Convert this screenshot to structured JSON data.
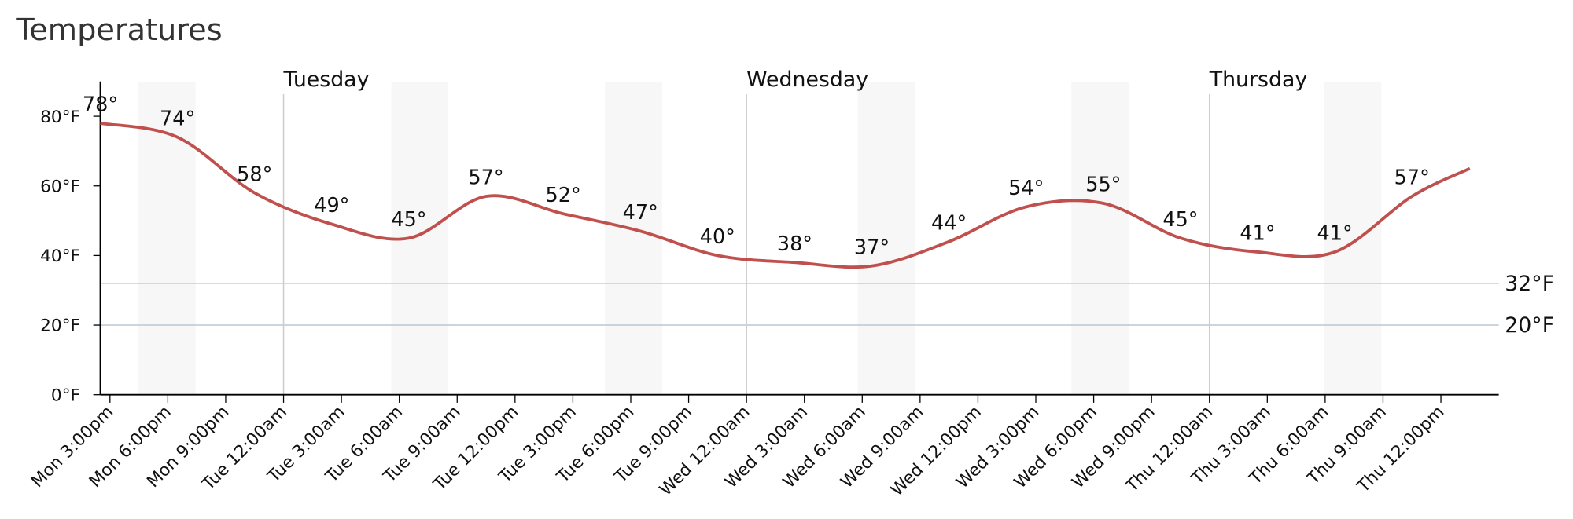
{
  "chart_data": {
    "type": "line",
    "title": "Temperatures",
    "x": [
      14.5,
      18.5,
      22.5,
      26.5,
      30.5,
      34.5,
      38.5,
      42.5,
      46.5,
      50.5,
      54.5,
      58.5,
      62.5,
      66.5,
      70.5,
      74.5,
      78.5,
      82.5,
      85.5
    ],
    "series": [
      {
        "name": "Temperature",
        "color": "#c0504d",
        "values": [
          78,
          74,
          58,
          49,
          45,
          57,
          52,
          47,
          40,
          38,
          37,
          44,
          54,
          55,
          45,
          41,
          41,
          57,
          65
        ],
        "value_labels": [
          "78°",
          "74°",
          "58°",
          "49°",
          "45°",
          "57°",
          "52°",
          "47°",
          "40°",
          "38°",
          "37°",
          "44°",
          "54°",
          "55°",
          "45°",
          "41°",
          "41°",
          "57°",
          null
        ]
      }
    ],
    "xlim": [
      14.5,
      87
    ],
    "xticks": [
      {
        "value": 15,
        "label": "Mon 3:00pm"
      },
      {
        "value": 18,
        "label": "Mon 6:00pm"
      },
      {
        "value": 21,
        "label": "Mon 9:00pm"
      },
      {
        "value": 24,
        "label": "Tue 12:00am"
      },
      {
        "value": 27,
        "label": "Tue 3:00am"
      },
      {
        "value": 30,
        "label": "Tue 6:00am"
      },
      {
        "value": 33,
        "label": "Tue 9:00am"
      },
      {
        "value": 36,
        "label": "Tue 12:00pm"
      },
      {
        "value": 39,
        "label": "Tue 3:00pm"
      },
      {
        "value": 42,
        "label": "Tue 6:00pm"
      },
      {
        "value": 45,
        "label": "Tue 9:00pm"
      },
      {
        "value": 48,
        "label": "Wed 12:00am"
      },
      {
        "value": 51,
        "label": "Wed 3:00am"
      },
      {
        "value": 54,
        "label": "Wed 6:00am"
      },
      {
        "value": 57,
        "label": "Wed 9:00am"
      },
      {
        "value": 60,
        "label": "Wed 12:00pm"
      },
      {
        "value": 63,
        "label": "Wed 3:00pm"
      },
      {
        "value": 66,
        "label": "Wed 6:00pm"
      },
      {
        "value": 69,
        "label": "Wed 9:00pm"
      },
      {
        "value": 72,
        "label": "Thu 12:00am"
      },
      {
        "value": 75,
        "label": "Thu 3:00am"
      },
      {
        "value": 78,
        "label": "Thu 6:00am"
      },
      {
        "value": 81,
        "label": "Thu 9:00am"
      },
      {
        "value": 84,
        "label": "Thu 12:00pm"
      }
    ],
    "days": [
      {
        "value": 24,
        "label": "Tuesday"
      },
      {
        "value": 48,
        "label": "Wednesday"
      },
      {
        "value": 72,
        "label": "Thursday"
      }
    ],
    "ylim": [
      0,
      90
    ],
    "yticks": [
      {
        "value": 0,
        "label": "0°F"
      },
      {
        "value": 20,
        "label": "20°F"
      },
      {
        "value": 40,
        "label": "40°F"
      },
      {
        "value": 60,
        "label": "60°F"
      },
      {
        "value": 80,
        "label": "80°F"
      }
    ],
    "reference_lines": [
      {
        "value": 32,
        "label": "32°F"
      },
      {
        "value": 20,
        "label": "20°F"
      }
    ]
  }
}
